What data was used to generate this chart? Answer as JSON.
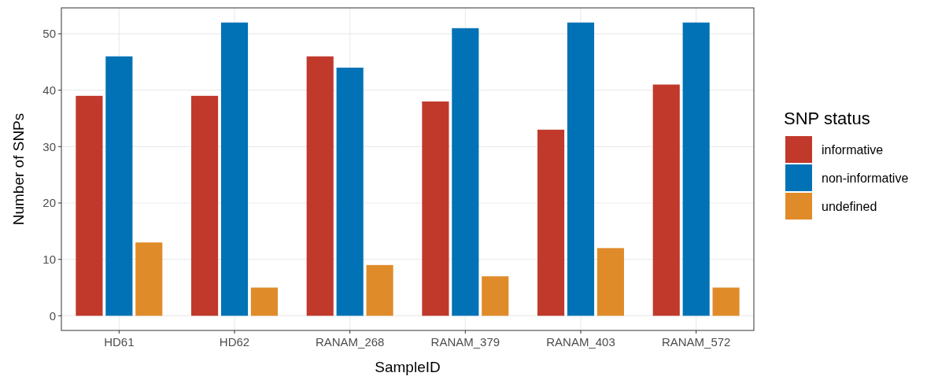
{
  "chart_data": {
    "type": "bar",
    "xlabel": "SampleID",
    "ylabel": "Number of SNPs",
    "legend_title": "SNP status",
    "categories": [
      "HD61",
      "HD62",
      "RANAM_268",
      "RANAM_379",
      "RANAM_403",
      "RANAM_572"
    ],
    "series": [
      {
        "name": "informative",
        "color": "#c0392b",
        "values": [
          39,
          39,
          46,
          38,
          33,
          41
        ]
      },
      {
        "name": "non-informative",
        "color": "#0072b5",
        "values": [
          46,
          52,
          44,
          51,
          52,
          52
        ]
      },
      {
        "name": "undefined",
        "color": "#e08b2a",
        "values": [
          13,
          5,
          9,
          7,
          12,
          5
        ]
      }
    ],
    "ylim": [
      -2.6,
      54.6
    ],
    "yticks": [
      0,
      10,
      20,
      30,
      40,
      50
    ],
    "grid": true,
    "legend": "right"
  }
}
